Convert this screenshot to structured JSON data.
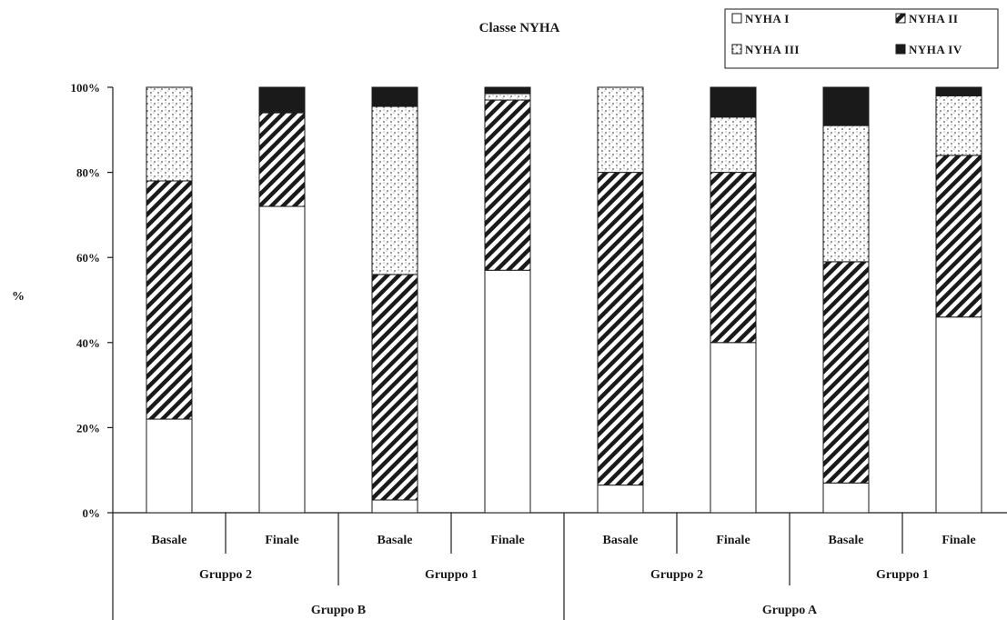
{
  "chart_data": {
    "type": "bar",
    "stacked": true,
    "percent": true,
    "title": "Classe NYHA",
    "ylabel": "%",
    "xlabel": "",
    "ylim": [
      0,
      100
    ],
    "yticks": [
      "0%",
      "20%",
      "40%",
      "60%",
      "80%",
      "100%"
    ],
    "grid": false,
    "legend_position": "top-right",
    "categories": [
      "Basale",
      "Finale",
      "Basale",
      "Finale",
      "Basale",
      "Finale",
      "Basale",
      "Finale"
    ],
    "subgroups": [
      "Gruppo 2",
      "Gruppo 1",
      "Gruppo 2",
      "Gruppo 1"
    ],
    "groups": [
      "Gruppo B",
      "Gruppo A"
    ],
    "series": [
      {
        "name": "NYHA I",
        "pattern": "blank",
        "values": [
          22,
          72,
          3,
          57,
          6.5,
          40,
          7,
          46
        ]
      },
      {
        "name": "NYHA II",
        "pattern": "hatch",
        "values": [
          56,
          22,
          53,
          40,
          73.5,
          40,
          52,
          38
        ]
      },
      {
        "name": "NYHA III",
        "pattern": "dotted",
        "values": [
          22,
          0,
          39.5,
          1.5,
          20,
          13,
          32,
          14
        ]
      },
      {
        "name": "NYHA IV",
        "pattern": "solid",
        "values": [
          0,
          6,
          4.5,
          1.5,
          0,
          7,
          9,
          2
        ]
      }
    ]
  }
}
